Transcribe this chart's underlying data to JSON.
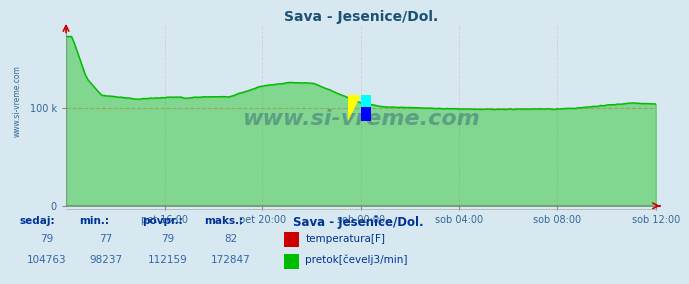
{
  "title": "Sava - Jesenice/Dol.",
  "bg_color": "#d8e8f0",
  "plot_bg_color": "#d8e8f0",
  "grid_color_h": "#ff9999",
  "grid_color_v": "#cccccc",
  "x_tick_labels": [
    "pet 16:00",
    "pet 20:00",
    "sob 00:00",
    "sob 04:00",
    "sob 08:00",
    "sob 12:00"
  ],
  "x_tick_positions": [
    0.167,
    0.333,
    0.5,
    0.667,
    0.833,
    1.0
  ],
  "y_tick_labels": [
    "0",
    "100 k"
  ],
  "y_tick_positions": [
    0,
    100000
  ],
  "y_max": 185000,
  "flow_color": "#00bb00",
  "temp_color": "#cc0000",
  "watermark": "www.si-vreme.com",
  "watermark_color": "#1a3a6a",
  "footer_label_color": "#0000aa",
  "footer_value_color": "#3366aa",
  "footer_bold_color": "#003399",
  "sedaj_label": "sedaj:",
  "min_label": "min.:",
  "povpr_label": "povpr.:",
  "maks_label": "maks.:",
  "station_label": "Sava - Jesenice/Dol.",
  "temp_legend": "temperatura[F]",
  "flow_legend": "pretok[čevelj3/min]",
  "temp_sedaj": 79,
  "temp_min": 77,
  "temp_povpr": 79,
  "temp_maks": 82,
  "flow_sedaj": 104763,
  "flow_min": 98237,
  "flow_povpr": 112159,
  "flow_maks": 172847,
  "n_points": 216,
  "arrow_color": "#cc0000",
  "line_color_bottom": "#8800aa"
}
